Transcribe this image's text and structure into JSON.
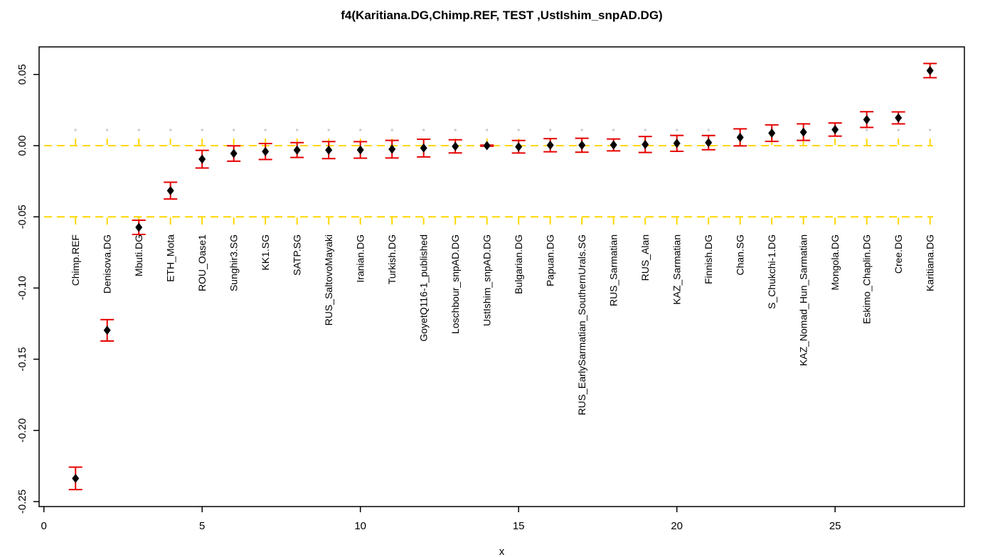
{
  "chart_data": {
    "type": "scatter",
    "title": "f4(Karitiana.DG,Chimp.REF, TEST ,UstIshim_snpAD.DG)",
    "xlabel": "x",
    "ylabel": "",
    "x_ticks": [
      {
        "t": 0,
        "label": "0"
      },
      {
        "t": 5,
        "label": "5"
      },
      {
        "t": 10,
        "label": "10"
      },
      {
        "t": 15,
        "label": "15"
      },
      {
        "t": 20,
        "label": "20"
      },
      {
        "t": 25,
        "label": "25"
      }
    ],
    "y_ticks": [
      {
        "v": 0.05,
        "label": "0.05"
      },
      {
        "v": 0.0,
        "label": "0.00"
      },
      {
        "v": -0.05,
        "label": "-0.05"
      },
      {
        "v": -0.1,
        "label": "-0.10"
      },
      {
        "v": -0.15,
        "label": "-0.15"
      },
      {
        "v": -0.2,
        "label": "-0.20"
      },
      {
        "v": -0.25,
        "label": "-0.25"
      }
    ],
    "xlim": [
      -0.15,
      29.1
    ],
    "ylim": [
      -0.2535,
      0.0695
    ],
    "grid": false,
    "legend_position": "none",
    "marker": "filled-diamond",
    "error_bar_meaning": "value ± standard error",
    "guides": {
      "dashed_line_values": [
        0.0,
        -0.05
      ],
      "dashed_line_color": "#ffd700",
      "vertical_tick_above_zero_line": 0.005,
      "vertical_tick_below_lower_line": 0.0055,
      "dotted_marker_value": 0.011,
      "dotted_marker_color": "#c9c9d4"
    },
    "colors": {
      "point": "#000000",
      "error_bar": "#e60000",
      "axis": "#000000",
      "background": "#ffffff"
    },
    "series": [
      {
        "name": "f4(Karitiana.DG,Chimp.REF, TEST ,UstIshim_snpAD.DG)",
        "points": [
          {
            "x": 1,
            "label": "Chimp.REF",
            "value": -0.2337,
            "se": 0.0079
          },
          {
            "x": 2,
            "label": "Denisova.DG",
            "value": -0.1297,
            "se": 0.0075
          },
          {
            "x": 3,
            "label": "Mbuti.DG",
            "value": -0.0574,
            "se": 0.005
          },
          {
            "x": 4,
            "label": "ETH_Mota",
            "value": -0.0316,
            "se": 0.0059
          },
          {
            "x": 5,
            "label": "ROU_Oase1",
            "value": -0.0095,
            "se": 0.0062
          },
          {
            "x": 6,
            "label": "Sunghir3.SG",
            "value": -0.0055,
            "se": 0.0054
          },
          {
            "x": 7,
            "label": "KK1.SG",
            "value": -0.0041,
            "se": 0.0056
          },
          {
            "x": 8,
            "label": "SATP.SG",
            "value": -0.0031,
            "se": 0.0052
          },
          {
            "x": 9,
            "label": "RUS_SaltovoMayaki",
            "value": -0.0031,
            "se": 0.006
          },
          {
            "x": 10,
            "label": "Iranian.DG",
            "value": -0.003,
            "se": 0.0058
          },
          {
            "x": 11,
            "label": "Turkish.DG",
            "value": -0.0025,
            "se": 0.0062
          },
          {
            "x": 12,
            "label": "GoyetQ116-1_published",
            "value": -0.0017,
            "se": 0.0062
          },
          {
            "x": 13,
            "label": "Loschbour_snpAD.DG",
            "value": -0.0005,
            "se": 0.0046
          },
          {
            "x": 14,
            "label": "UstIshim_snpAD.DG",
            "value": 0.0,
            "se": 0.0004
          },
          {
            "x": 15,
            "label": "Bulgarian.DG",
            "value": -0.0008,
            "se": 0.0044
          },
          {
            "x": 16,
            "label": "Papuan.DG",
            "value": 0.0003,
            "se": 0.0046
          },
          {
            "x": 17,
            "label": "RUS_EarlySarmatian_SouthernUrals.SG",
            "value": 0.0003,
            "se": 0.0049
          },
          {
            "x": 18,
            "label": "RUS_Sarmatian",
            "value": 0.0005,
            "se": 0.0042
          },
          {
            "x": 19,
            "label": "RUS_Alan",
            "value": 0.0008,
            "se": 0.0056
          },
          {
            "x": 20,
            "label": "KAZ_Sarmatian",
            "value": 0.0016,
            "se": 0.0056
          },
          {
            "x": 21,
            "label": "Finnish.DG",
            "value": 0.0021,
            "se": 0.005
          },
          {
            "x": 22,
            "label": "Chan.SG",
            "value": 0.0058,
            "se": 0.006
          },
          {
            "x": 23,
            "label": "S_Chukchi-1.DG",
            "value": 0.0088,
            "se": 0.0058
          },
          {
            "x": 24,
            "label": "KAZ_Nomad_Hun_Sarmatian",
            "value": 0.0095,
            "se": 0.0058
          },
          {
            "x": 25,
            "label": "Mongola.DG",
            "value": 0.0113,
            "se": 0.0046
          },
          {
            "x": 26,
            "label": "Eskimo_Chaplin.DG",
            "value": 0.0183,
            "se": 0.0055
          },
          {
            "x": 27,
            "label": "Cree.DG",
            "value": 0.0195,
            "se": 0.0042
          },
          {
            "x": 28,
            "label": "Karitiana.DG",
            "value": 0.0527,
            "se": 0.005
          }
        ]
      }
    ]
  }
}
